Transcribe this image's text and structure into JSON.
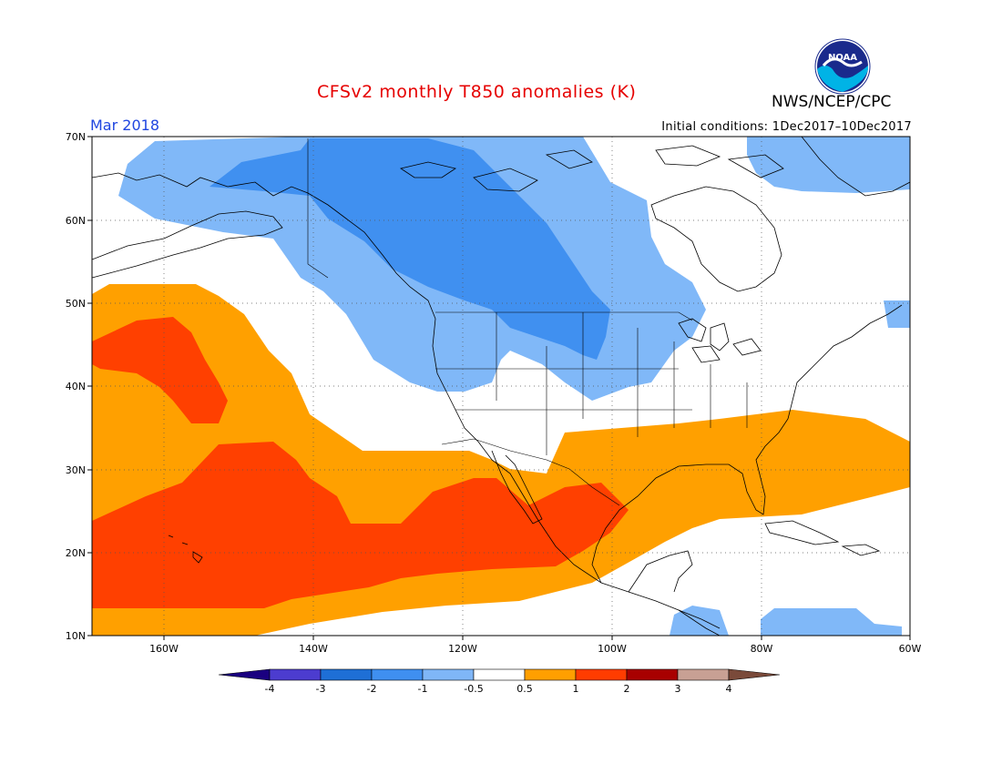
{
  "title": "CFSv2 monthly T850 anomalies (K)",
  "agency": "NWS/NCEP/CPC",
  "logo_text": "NOAA",
  "valid_month": "Mar 2018",
  "initial_conditions": "Initial conditions: 1Dec2017–10Dec2017",
  "lat_labels": [
    "70N",
    "60N",
    "50N",
    "40N",
    "30N",
    "20N",
    "10N"
  ],
  "lon_labels": [
    "160W",
    "140W",
    "120W",
    "100W",
    "80W",
    "60W"
  ],
  "colorbar": {
    "labels": [
      "-4",
      "-3",
      "-2",
      "-1",
      "-0.5",
      "0.5",
      "1",
      "2",
      "3",
      "4"
    ],
    "colors": [
      "#1a0080",
      "#4c3ccf",
      "#1e6fd6",
      "#3f8ff0",
      "#7fb6f7",
      "#ffffff",
      "#ff9f00",
      "#ff3c00",
      "#a80000",
      "#c8a094",
      "#7a4a3a"
    ]
  },
  "anomaly_colors": {
    "neg_1": "#4090f0",
    "neg_05": "#80b8f8",
    "pos_05": "#ffa000",
    "pos_1": "#ff4000"
  }
}
